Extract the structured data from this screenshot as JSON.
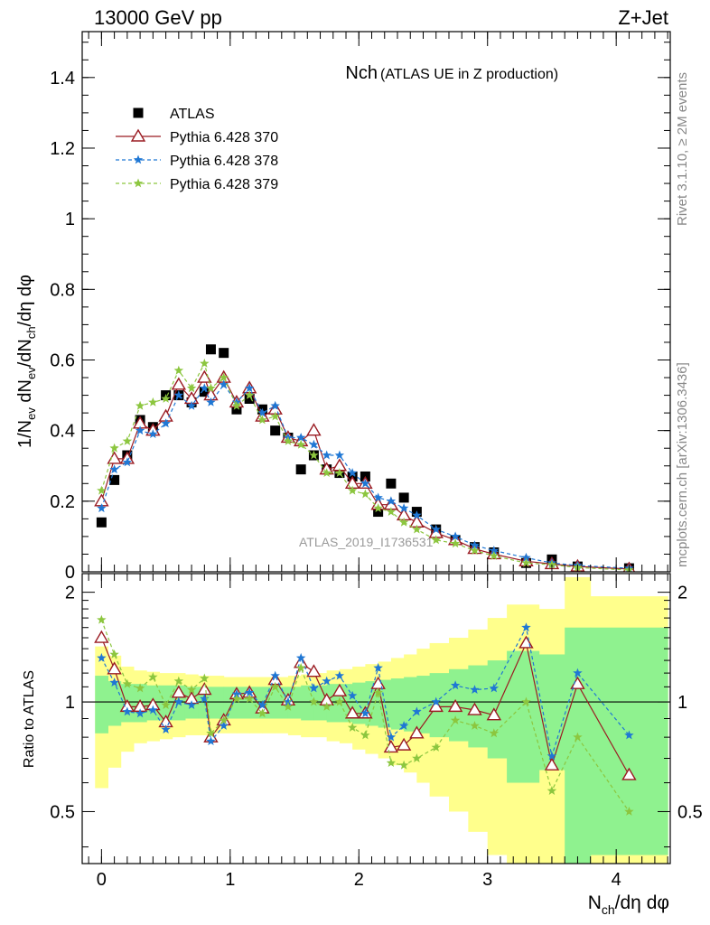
{
  "header": {
    "left": "13000 GeV pp",
    "right": "Z+Jet",
    "side_top": "Rivet 3.1.10, ≥ 2M events",
    "side_bottom": "mcplots.cern.ch [arXiv:1306.3436]",
    "watermark": "ATLAS_2019_I1736531"
  },
  "chart_data": [
    {
      "panel": "main",
      "type": "scatter",
      "title": "Nch",
      "subtitle": "(ATLAS UE in Z production)",
      "xlabel": "N_ch/dη dφ",
      "ylabel": "1/N_ev dN_ev/dN_ch/dη dφ",
      "xlim": [
        -0.15,
        4.42
      ],
      "ylim": [
        0,
        1.53
      ],
      "yticks": [
        "0",
        "0.2",
        "0.4",
        "0.6",
        "0.8",
        "1",
        "1.2",
        "1.4"
      ],
      "legend_position": "top-left",
      "x": [
        0.0,
        0.1,
        0.2,
        0.3,
        0.4,
        0.5,
        0.6,
        0.7,
        0.8,
        0.85,
        0.95,
        1.05,
        1.15,
        1.25,
        1.35,
        1.45,
        1.55,
        1.65,
        1.75,
        1.85,
        1.95,
        2.05,
        2.15,
        2.25,
        2.35,
        2.45,
        2.6,
        2.75,
        2.9,
        3.05,
        3.3,
        3.5,
        3.7,
        4.1
      ],
      "series": [
        {
          "name": "ATLAS",
          "color": "#000000",
          "marker": "square",
          "values": [
            0.14,
            0.26,
            0.33,
            0.43,
            0.41,
            0.5,
            0.5,
            0.48,
            0.51,
            0.63,
            0.62,
            0.46,
            0.49,
            0.46,
            0.4,
            0.38,
            0.29,
            0.33,
            0.29,
            0.28,
            0.27,
            0.27,
            0.17,
            0.25,
            0.21,
            0.17,
            0.12,
            0.09,
            0.07,
            0.055,
            0.025,
            0.035,
            0.015,
            0.01
          ]
        },
        {
          "name": "Pythia 6.428 370",
          "color": "#9a1b22",
          "marker": "triangle",
          "line": "solid",
          "values": [
            0.2,
            0.32,
            0.32,
            0.42,
            0.4,
            0.44,
            0.53,
            0.49,
            0.55,
            0.5,
            0.55,
            0.48,
            0.52,
            0.44,
            0.46,
            0.38,
            0.37,
            0.4,
            0.29,
            0.3,
            0.25,
            0.25,
            0.19,
            0.19,
            0.16,
            0.14,
            0.11,
            0.09,
            0.065,
            0.05,
            0.03,
            0.022,
            0.015,
            0.008
          ]
        },
        {
          "name": "Pythia 6.428 378",
          "color": "#1f77d4",
          "marker": "star",
          "line": "dashed",
          "values": [
            0.18,
            0.29,
            0.31,
            0.4,
            0.39,
            0.42,
            0.5,
            0.47,
            0.52,
            0.48,
            0.53,
            0.48,
            0.52,
            0.45,
            0.47,
            0.38,
            0.38,
            0.36,
            0.33,
            0.33,
            0.28,
            0.25,
            0.21,
            0.2,
            0.18,
            0.16,
            0.12,
            0.1,
            0.075,
            0.06,
            0.04,
            0.025,
            0.018,
            0.01
          ]
        },
        {
          "name": "Pythia 6.428 379",
          "color": "#8cc63f",
          "marker": "star",
          "line": "dashed",
          "values": [
            0.23,
            0.35,
            0.37,
            0.47,
            0.48,
            0.49,
            0.57,
            0.52,
            0.59,
            0.52,
            0.55,
            0.47,
            0.5,
            0.43,
            0.44,
            0.37,
            0.36,
            0.33,
            0.28,
            0.28,
            0.23,
            0.22,
            0.18,
            0.17,
            0.14,
            0.12,
            0.09,
            0.08,
            0.06,
            0.045,
            0.025,
            0.02,
            0.012,
            0.005
          ]
        }
      ]
    },
    {
      "panel": "ratio",
      "type": "line",
      "ylabel": "Ratio to ATLAS",
      "xlabel": "N_ch/dη dφ",
      "xlim": [
        -0.15,
        4.42
      ],
      "ylim": [
        0.36,
        2.25
      ],
      "yticks": [
        "0.5",
        "1",
        "2"
      ],
      "xticks": [
        "0",
        "1",
        "2",
        "3",
        "4"
      ],
      "reference_line": 1,
      "x": [
        0.0,
        0.1,
        0.2,
        0.3,
        0.4,
        0.5,
        0.6,
        0.7,
        0.8,
        0.85,
        0.95,
        1.05,
        1.15,
        1.25,
        1.35,
        1.45,
        1.55,
        1.65,
        1.75,
        1.85,
        1.95,
        2.05,
        2.15,
        2.25,
        2.35,
        2.45,
        2.6,
        2.75,
        2.9,
        3.05,
        3.3,
        3.5,
        3.7,
        4.1
      ],
      "band_edges": [
        -0.05,
        0.05,
        0.15,
        0.25,
        0.35,
        0.45,
        0.55,
        0.65,
        0.75,
        0.85,
        0.95,
        1.05,
        1.15,
        1.25,
        1.35,
        1.45,
        1.55,
        1.65,
        1.75,
        1.85,
        1.95,
        2.05,
        2.15,
        2.25,
        2.35,
        2.45,
        2.55,
        2.7,
        2.85,
        3.0,
        3.15,
        3.4,
        3.6,
        3.8,
        4.4
      ],
      "band_stat": [
        [
          0.82,
          1.18
        ],
        [
          0.86,
          1.14
        ],
        [
          0.88,
          1.12
        ],
        [
          0.88,
          1.12
        ],
        [
          0.89,
          1.11
        ],
        [
          0.89,
          1.11
        ],
        [
          0.89,
          1.11
        ],
        [
          0.9,
          1.1
        ],
        [
          0.9,
          1.1
        ],
        [
          0.9,
          1.1
        ],
        [
          0.9,
          1.1
        ],
        [
          0.9,
          1.1
        ],
        [
          0.9,
          1.1
        ],
        [
          0.9,
          1.1
        ],
        [
          0.9,
          1.1
        ],
        [
          0.9,
          1.1
        ],
        [
          0.89,
          1.11
        ],
        [
          0.89,
          1.11
        ],
        [
          0.88,
          1.12
        ],
        [
          0.88,
          1.12
        ],
        [
          0.87,
          1.13
        ],
        [
          0.86,
          1.14
        ],
        [
          0.85,
          1.15
        ],
        [
          0.84,
          1.16
        ],
        [
          0.83,
          1.17
        ],
        [
          0.82,
          1.18
        ],
        [
          0.8,
          1.2
        ],
        [
          0.78,
          1.23
        ],
        [
          0.75,
          1.26
        ],
        [
          0.7,
          1.3
        ],
        [
          0.6,
          1.38
        ],
        [
          0.65,
          1.35
        ],
        [
          0.36,
          1.6
        ],
        [
          0.38,
          1.6
        ]
      ],
      "band_total": [
        [
          0.58,
          1.42
        ],
        [
          0.66,
          1.34
        ],
        [
          0.73,
          1.25
        ],
        [
          0.77,
          1.22
        ],
        [
          0.78,
          1.21
        ],
        [
          0.79,
          1.2
        ],
        [
          0.8,
          1.2
        ],
        [
          0.81,
          1.19
        ],
        [
          0.81,
          1.18
        ],
        [
          0.82,
          1.18
        ],
        [
          0.82,
          1.17
        ],
        [
          0.82,
          1.17
        ],
        [
          0.82,
          1.17
        ],
        [
          0.82,
          1.17
        ],
        [
          0.82,
          1.17
        ],
        [
          0.81,
          1.18
        ],
        [
          0.8,
          1.19
        ],
        [
          0.8,
          1.2
        ],
        [
          0.78,
          1.22
        ],
        [
          0.77,
          1.23
        ],
        [
          0.74,
          1.25
        ],
        [
          0.72,
          1.27
        ],
        [
          0.7,
          1.29
        ],
        [
          0.67,
          1.32
        ],
        [
          0.64,
          1.35
        ],
        [
          0.6,
          1.4
        ],
        [
          0.55,
          1.45
        ],
        [
          0.5,
          1.5
        ],
        [
          0.44,
          1.58
        ],
        [
          0.38,
          1.7
        ],
        [
          0.36,
          1.85
        ],
        [
          0.36,
          1.8
        ],
        [
          0.36,
          2.2
        ],
        [
          0.36,
          1.95
        ]
      ],
      "band_colors": {
        "stat": "#8ff28f",
        "total": "#ffff8c"
      },
      "series": [
        {
          "name": "Pythia 6.428 370",
          "color": "#9a1b22",
          "marker": "triangle",
          "line": "solid",
          "values": [
            1.5,
            1.23,
            0.97,
            0.97,
            0.98,
            0.88,
            1.06,
            1.02,
            1.08,
            0.8,
            0.89,
            1.05,
            1.06,
            0.96,
            1.15,
            1.01,
            1.28,
            1.21,
            1.01,
            1.07,
            0.93,
            0.93,
            1.12,
            0.75,
            0.76,
            0.82,
            0.97,
            0.97,
            0.95,
            0.92,
            1.45,
            0.67,
            1.12,
            0.63
          ]
        },
        {
          "name": "Pythia 6.428 378",
          "color": "#1f77d4",
          "marker": "star",
          "line": "dashed",
          "values": [
            1.32,
            1.13,
            0.94,
            0.93,
            0.95,
            0.84,
            1.0,
            0.98,
            1.02,
            0.78,
            0.86,
            1.05,
            1.06,
            0.98,
            1.18,
            1.0,
            1.32,
            1.09,
            1.14,
            1.18,
            1.04,
            0.93,
            1.24,
            0.8,
            0.86,
            0.94,
            1.0,
            1.11,
            1.08,
            1.09,
            1.6,
            0.71,
            1.2,
            0.81
          ]
        },
        {
          "name": "Pythia 6.428 379",
          "color": "#8cc63f",
          "marker": "star",
          "line": "dashed",
          "values": [
            1.68,
            1.35,
            1.12,
            1.09,
            1.17,
            0.98,
            1.14,
            1.08,
            1.16,
            0.82,
            0.89,
            1.02,
            1.02,
            0.93,
            1.1,
            0.97,
            1.24,
            1.0,
            0.97,
            1.0,
            0.85,
            0.81,
            1.06,
            0.68,
            0.67,
            0.7,
            0.75,
            0.89,
            0.86,
            0.82,
            1.0,
            0.57,
            0.8,
            0.5
          ]
        }
      ]
    }
  ]
}
